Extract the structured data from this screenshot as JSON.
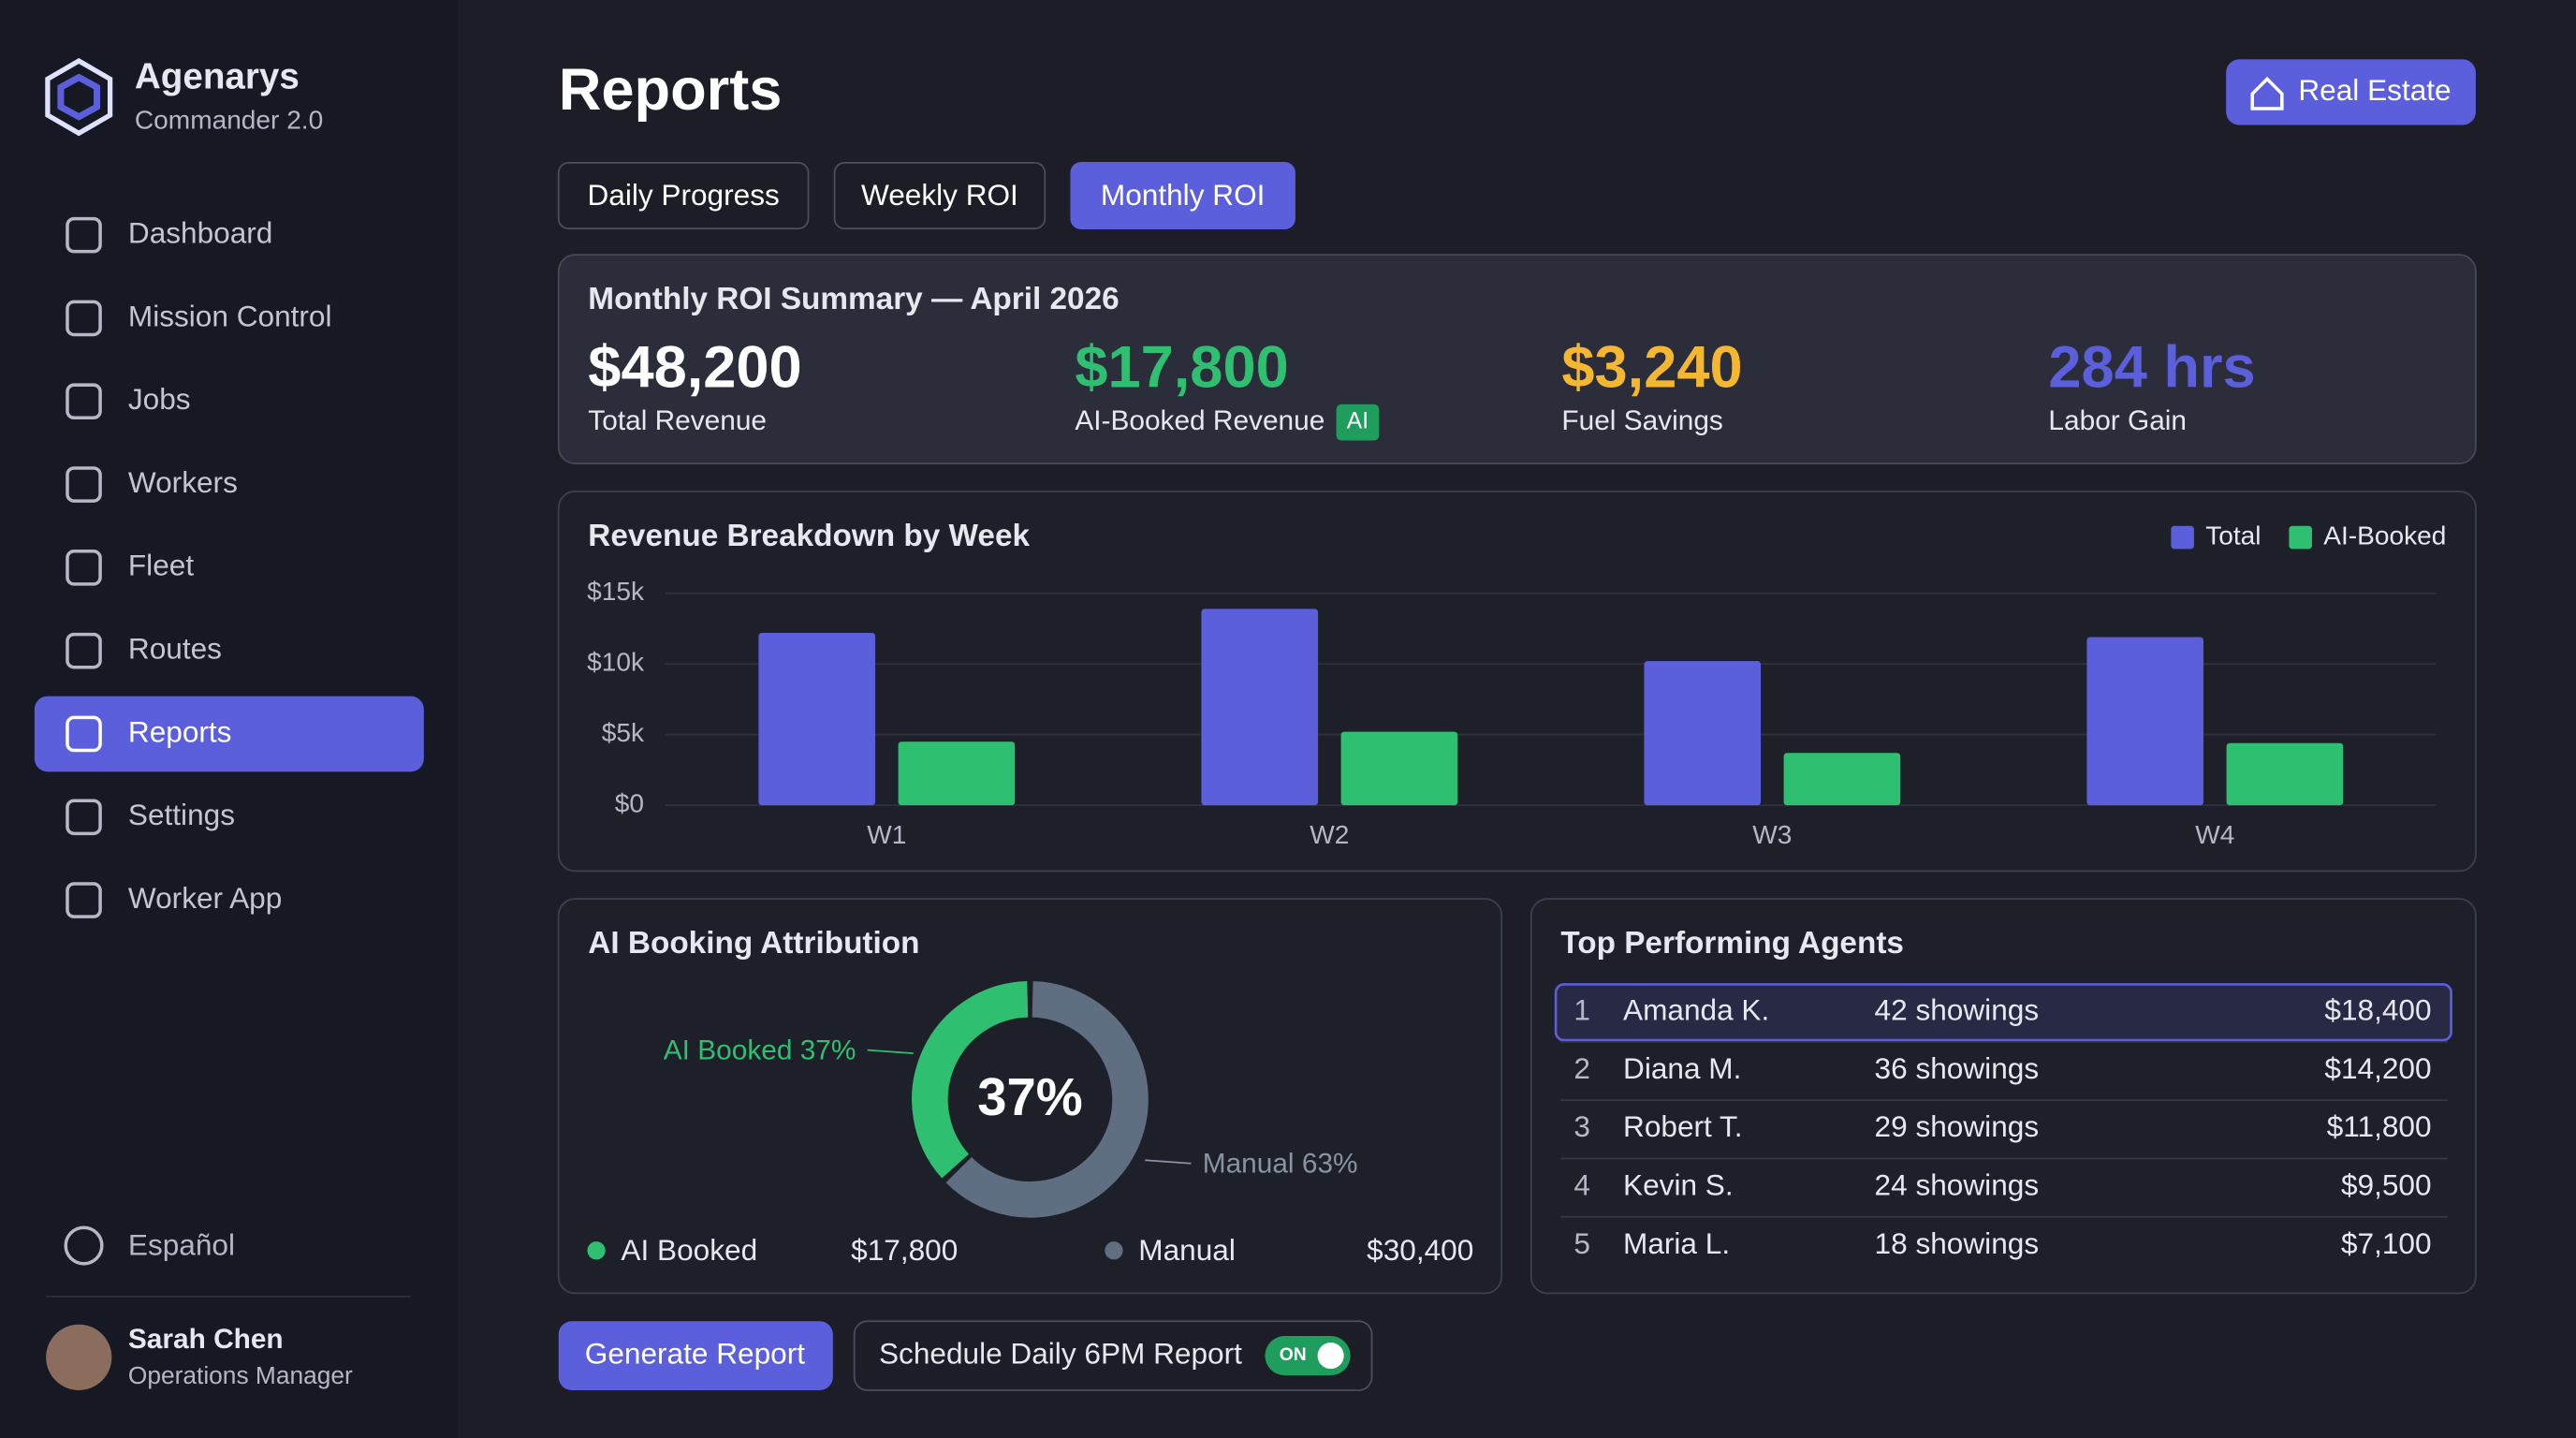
{
  "sidebar": {
    "brand": "Agenarys",
    "version": "Commander 2.0",
    "nav": [
      {
        "label": "Dashboard"
      },
      {
        "label": "Mission Control"
      },
      {
        "label": "Jobs"
      },
      {
        "label": "Workers"
      },
      {
        "label": "Fleet"
      },
      {
        "label": "Routes"
      },
      {
        "label": "Reports",
        "active": true
      },
      {
        "label": "Settings"
      },
      {
        "label": "Worker App"
      }
    ],
    "language": "Español",
    "user": {
      "name": "Sarah Chen",
      "role": "Operations Manager"
    }
  },
  "header": {
    "title": "Reports",
    "button": "Real Estate"
  },
  "tabs": [
    {
      "label": "Daily Progress"
    },
    {
      "label": "Weekly ROI"
    },
    {
      "label": "Monthly ROI",
      "active": true
    }
  ],
  "summary": {
    "title": "Monthly ROI Summary — April 2026",
    "metrics": [
      {
        "value": "$48,200",
        "label": "Total Revenue",
        "color": "#ffffff"
      },
      {
        "value": "$17,800",
        "label": "AI-Booked Revenue",
        "badge": "AI",
        "color": "#2fbf71"
      },
      {
        "value": "$3,240",
        "label": "Fuel Savings",
        "color": "#f5b731"
      },
      {
        "value": "284 hrs",
        "label": "Labor Gain",
        "color": "#5b5fdb"
      }
    ]
  },
  "chart_data": [
    {
      "type": "bar",
      "title": "Revenue Breakdown by Week",
      "categories": [
        "W1",
        "W2",
        "W3",
        "W4"
      ],
      "series": [
        {
          "name": "Total",
          "color": "#5b5fdb",
          "values": [
            12200,
            13900,
            10200,
            11900
          ]
        },
        {
          "name": "AI-Booked",
          "color": "#2fbf71",
          "values": [
            4500,
            5200,
            3700,
            4400
          ]
        }
      ],
      "ylim": [
        0,
        15000
      ],
      "yticks": [
        {
          "value": 0,
          "label": "$0"
        },
        {
          "value": 5000,
          "label": "$5k"
        },
        {
          "value": 10000,
          "label": "$10k"
        },
        {
          "value": 15000,
          "label": "$15k"
        }
      ],
      "grid": true,
      "legend": "top-right"
    },
    {
      "type": "pie",
      "title": "AI Booking Attribution",
      "categories": [
        "AI Booked",
        "Manual"
      ],
      "values": [
        37,
        63
      ],
      "value_labels": [
        "AI Booked 37%",
        "Manual 63%"
      ],
      "colors": [
        "#2fbf71",
        "#5f6e80"
      ],
      "center_label": "37%",
      "legend": [
        {
          "name": "AI Booked",
          "amount": "$17,800"
        },
        {
          "name": "Manual",
          "amount": "$30,400"
        }
      ]
    }
  ],
  "agents": {
    "title": "Top Performing Agents",
    "highlight_row": 0,
    "rows": [
      [
        "1",
        "Amanda K.",
        "42 showings",
        "$18,400"
      ],
      [
        "2",
        "Diana M.",
        "36 showings",
        "$14,200"
      ],
      [
        "3",
        "Robert T.",
        "29 showings",
        "$11,800"
      ],
      [
        "4",
        "Kevin S.",
        "24 showings",
        "$9,500"
      ],
      [
        "5",
        "Maria L.",
        "18 showings",
        "$7,100"
      ]
    ]
  },
  "footer": {
    "generate": "Generate Report",
    "schedule": "Schedule Daily 6PM Report",
    "toggle": "ON"
  }
}
